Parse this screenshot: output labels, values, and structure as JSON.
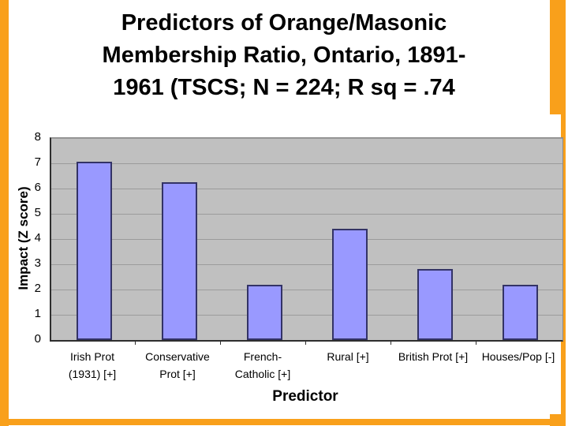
{
  "slide": {
    "title_lines": [
      "Predictors of Orange/Masonic",
      "Membership Ratio, Ontario, 1891-",
      "1961 (TSCS; N = 224; R sq = .74"
    ],
    "colors": {
      "border": "#F9A01B",
      "background": "#FFFFFF"
    }
  },
  "chart_data": {
    "type": "bar",
    "title": "Predictors of Orange/Masonic Membership Ratio, Ontario, 1891-1961 (TSCS; N = 224; R sq = .74",
    "categories": [
      "Irish Prot (1931) [+]",
      "Conservative Prot [+]",
      "French-Catholic [+]",
      "Rural [+]",
      "British Prot [+]",
      "Houses/Pop [-]"
    ],
    "category_label_lines": [
      [
        "Irish Prot",
        "(1931) [+]"
      ],
      [
        "Conservative",
        "Prot [+]"
      ],
      [
        "French-",
        "Catholic [+]"
      ],
      [
        "Rural [+]"
      ],
      [
        "British Prot [+]"
      ],
      [
        "Houses/Pop [-]"
      ]
    ],
    "values": [
      7.05,
      6.25,
      2.2,
      4.4,
      2.8,
      2.2
    ],
    "xlabel": "Predictor",
    "ylabel": "Impact (Z score)",
    "ylim": [
      0,
      8
    ],
    "ytick_labels": [
      "0",
      "1",
      "2",
      "3",
      "4",
      "5",
      "6",
      "7",
      "8"
    ],
    "grid": true,
    "legend_position": "none",
    "colors": {
      "bar_fill": "#9999FF",
      "bar_border": "#333366",
      "plot_bg": "#C0C0C0",
      "gridline": "#9B9B9B",
      "axis": "#2E2E2E"
    }
  }
}
